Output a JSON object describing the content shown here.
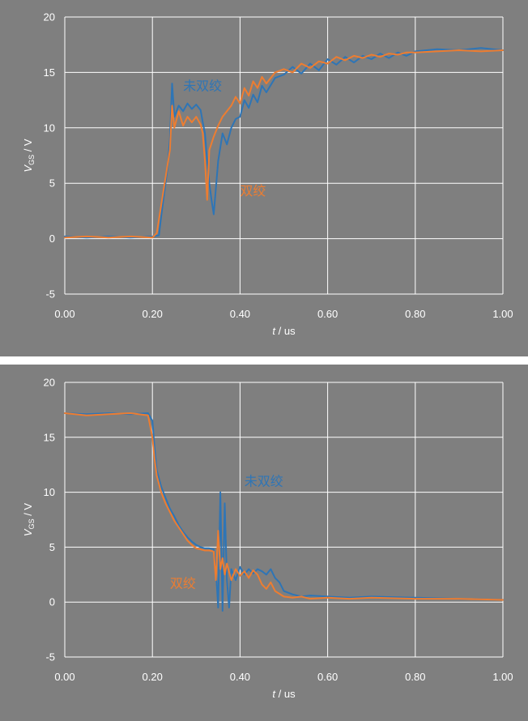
{
  "colors": {
    "background": "#7f7f7f",
    "grid": "#ffffff",
    "untwisted": "#2e75b6",
    "twisted": "#ed7d31",
    "text": "#ffffff"
  },
  "chart_data": [
    {
      "type": "line",
      "xlabel_var": "t",
      "xlabel_unit": " / us",
      "ylabel_var": "V",
      "ylabel_sub": "GS",
      "ylabel_unit": " / V",
      "xlim": [
        0,
        1
      ],
      "ylim": [
        -5,
        20
      ],
      "grid": true,
      "x_ticks": [
        "0.00",
        "0.20",
        "0.40",
        "0.60",
        "0.80",
        "1.00"
      ],
      "y_ticks": [
        "-5",
        "0",
        "5",
        "10",
        "15",
        "20"
      ],
      "annotations": [
        {
          "text": "未双绞",
          "series": "untwisted",
          "x": 0.27,
          "y": 13.4
        },
        {
          "text": "双绞",
          "series": "twisted",
          "x": 0.4,
          "y": 3.9
        }
      ],
      "series": [
        {
          "key": "untwisted",
          "x": [
            0.0,
            0.05,
            0.1,
            0.15,
            0.2,
            0.215,
            0.22,
            0.23,
            0.235,
            0.24,
            0.245,
            0.25,
            0.26,
            0.27,
            0.28,
            0.29,
            0.3,
            0.31,
            0.315,
            0.32,
            0.325,
            0.33,
            0.335,
            0.34,
            0.35,
            0.36,
            0.37,
            0.38,
            0.39,
            0.4,
            0.41,
            0.42,
            0.43,
            0.44,
            0.45,
            0.46,
            0.48,
            0.5,
            0.52,
            0.54,
            0.56,
            0.58,
            0.6,
            0.62,
            0.64,
            0.66,
            0.68,
            0.7,
            0.72,
            0.74,
            0.76,
            0.78,
            0.8,
            0.85,
            0.9,
            0.95,
            1.0
          ],
          "y": [
            0.2,
            0.1,
            0.2,
            0.1,
            0.2,
            0.3,
            2.0,
            5.0,
            6.5,
            9.0,
            14.0,
            11.0,
            12.0,
            11.5,
            12.2,
            11.7,
            12.1,
            11.6,
            10.5,
            9.5,
            7.0,
            5.0,
            3.5,
            2.2,
            7.0,
            9.5,
            8.5,
            10.0,
            10.8,
            11.0,
            12.5,
            11.8,
            13.0,
            12.3,
            13.8,
            13.2,
            14.5,
            14.8,
            15.5,
            14.9,
            15.8,
            15.2,
            16.2,
            15.7,
            16.4,
            15.9,
            16.5,
            16.2,
            16.7,
            16.3,
            16.8,
            16.5,
            16.9,
            17.1,
            17.0,
            17.2,
            17.0
          ]
        },
        {
          "key": "twisted",
          "x": [
            0.0,
            0.05,
            0.1,
            0.15,
            0.2,
            0.21,
            0.22,
            0.23,
            0.24,
            0.245,
            0.25,
            0.26,
            0.27,
            0.28,
            0.29,
            0.3,
            0.31,
            0.315,
            0.32,
            0.325,
            0.33,
            0.34,
            0.35,
            0.36,
            0.37,
            0.38,
            0.39,
            0.4,
            0.41,
            0.42,
            0.43,
            0.44,
            0.45,
            0.46,
            0.48,
            0.5,
            0.52,
            0.54,
            0.56,
            0.58,
            0.6,
            0.62,
            0.64,
            0.66,
            0.68,
            0.7,
            0.72,
            0.74,
            0.76,
            0.78,
            0.8,
            0.85,
            0.9,
            0.95,
            1.0
          ],
          "y": [
            0.1,
            0.2,
            0.1,
            0.2,
            0.1,
            0.5,
            3.0,
            5.5,
            8.0,
            12.0,
            10.0,
            11.5,
            10.2,
            11.0,
            10.5,
            11.0,
            10.3,
            9.5,
            7.0,
            3.5,
            8.0,
            9.2,
            10.2,
            11.0,
            11.5,
            12.0,
            12.8,
            12.2,
            13.6,
            12.9,
            14.2,
            13.6,
            14.6,
            14.0,
            15.0,
            15.3,
            15.0,
            15.8,
            15.4,
            16.0,
            15.8,
            16.4,
            16.1,
            16.5,
            16.3,
            16.6,
            16.4,
            16.7,
            16.6,
            16.8,
            16.8,
            16.9,
            17.0,
            16.9,
            17.0
          ]
        }
      ]
    },
    {
      "type": "line",
      "xlabel_var": "t",
      "xlabel_unit": " / us",
      "ylabel_var": "V",
      "ylabel_sub": "GS",
      "ylabel_unit": " / V",
      "xlim": [
        0,
        1
      ],
      "ylim": [
        -5,
        20
      ],
      "grid": true,
      "x_ticks": [
        "0.00",
        "0.20",
        "0.40",
        "0.60",
        "0.80",
        "1.00"
      ],
      "y_ticks": [
        "-5",
        "0",
        "5",
        "10",
        "15",
        "20"
      ],
      "annotations": [
        {
          "text": "未双绞",
          "series": "untwisted",
          "x": 0.41,
          "y": 10.6
        },
        {
          "text": "双绞",
          "series": "twisted",
          "x": 0.24,
          "y": 1.3
        }
      ],
      "series": [
        {
          "key": "untwisted",
          "x": [
            0.0,
            0.05,
            0.1,
            0.15,
            0.19,
            0.2,
            0.205,
            0.21,
            0.22,
            0.23,
            0.24,
            0.25,
            0.26,
            0.27,
            0.28,
            0.29,
            0.3,
            0.31,
            0.32,
            0.33,
            0.34,
            0.345,
            0.35,
            0.355,
            0.36,
            0.365,
            0.37,
            0.375,
            0.38,
            0.39,
            0.4,
            0.41,
            0.42,
            0.43,
            0.44,
            0.45,
            0.46,
            0.47,
            0.48,
            0.49,
            0.5,
            0.52,
            0.54,
            0.56,
            0.6,
            0.65,
            0.7,
            0.8,
            0.9,
            1.0
          ],
          "y": [
            17.2,
            17.1,
            17.2,
            17.1,
            17.2,
            16.5,
            14.0,
            12.0,
            10.5,
            9.5,
            8.5,
            7.8,
            7.0,
            6.4,
            5.9,
            5.5,
            5.2,
            5.0,
            4.9,
            4.9,
            4.8,
            3.0,
            -0.5,
            10.0,
            -0.8,
            9.0,
            2.0,
            -0.5,
            3.0,
            2.0,
            3.2,
            2.5,
            3.0,
            2.6,
            3.0,
            2.8,
            2.5,
            3.0,
            2.2,
            1.8,
            1.0,
            0.7,
            0.5,
            0.6,
            0.5,
            0.4,
            0.5,
            0.4,
            0.3,
            0.2
          ]
        },
        {
          "key": "twisted",
          "x": [
            0.0,
            0.05,
            0.1,
            0.15,
            0.19,
            0.2,
            0.205,
            0.21,
            0.22,
            0.23,
            0.24,
            0.25,
            0.26,
            0.27,
            0.28,
            0.29,
            0.3,
            0.31,
            0.32,
            0.33,
            0.34,
            0.345,
            0.35,
            0.355,
            0.36,
            0.365,
            0.37,
            0.38,
            0.39,
            0.4,
            0.41,
            0.42,
            0.43,
            0.44,
            0.45,
            0.46,
            0.47,
            0.48,
            0.5,
            0.52,
            0.54,
            0.56,
            0.6,
            0.65,
            0.7,
            0.8,
            0.9,
            1.0
          ],
          "y": [
            17.2,
            17.0,
            17.1,
            17.2,
            17.0,
            15.0,
            13.0,
            11.5,
            10.0,
            9.0,
            8.2,
            7.4,
            6.8,
            6.2,
            5.6,
            5.2,
            4.9,
            4.8,
            4.7,
            4.7,
            4.6,
            2.0,
            6.5,
            3.0,
            4.0,
            2.5,
            3.5,
            2.0,
            3.0,
            2.4,
            2.8,
            2.2,
            2.9,
            2.5,
            1.6,
            1.2,
            1.8,
            1.0,
            0.5,
            0.4,
            0.5,
            0.3,
            0.4,
            0.3,
            0.4,
            0.3,
            0.3,
            0.2
          ]
        }
      ]
    }
  ]
}
